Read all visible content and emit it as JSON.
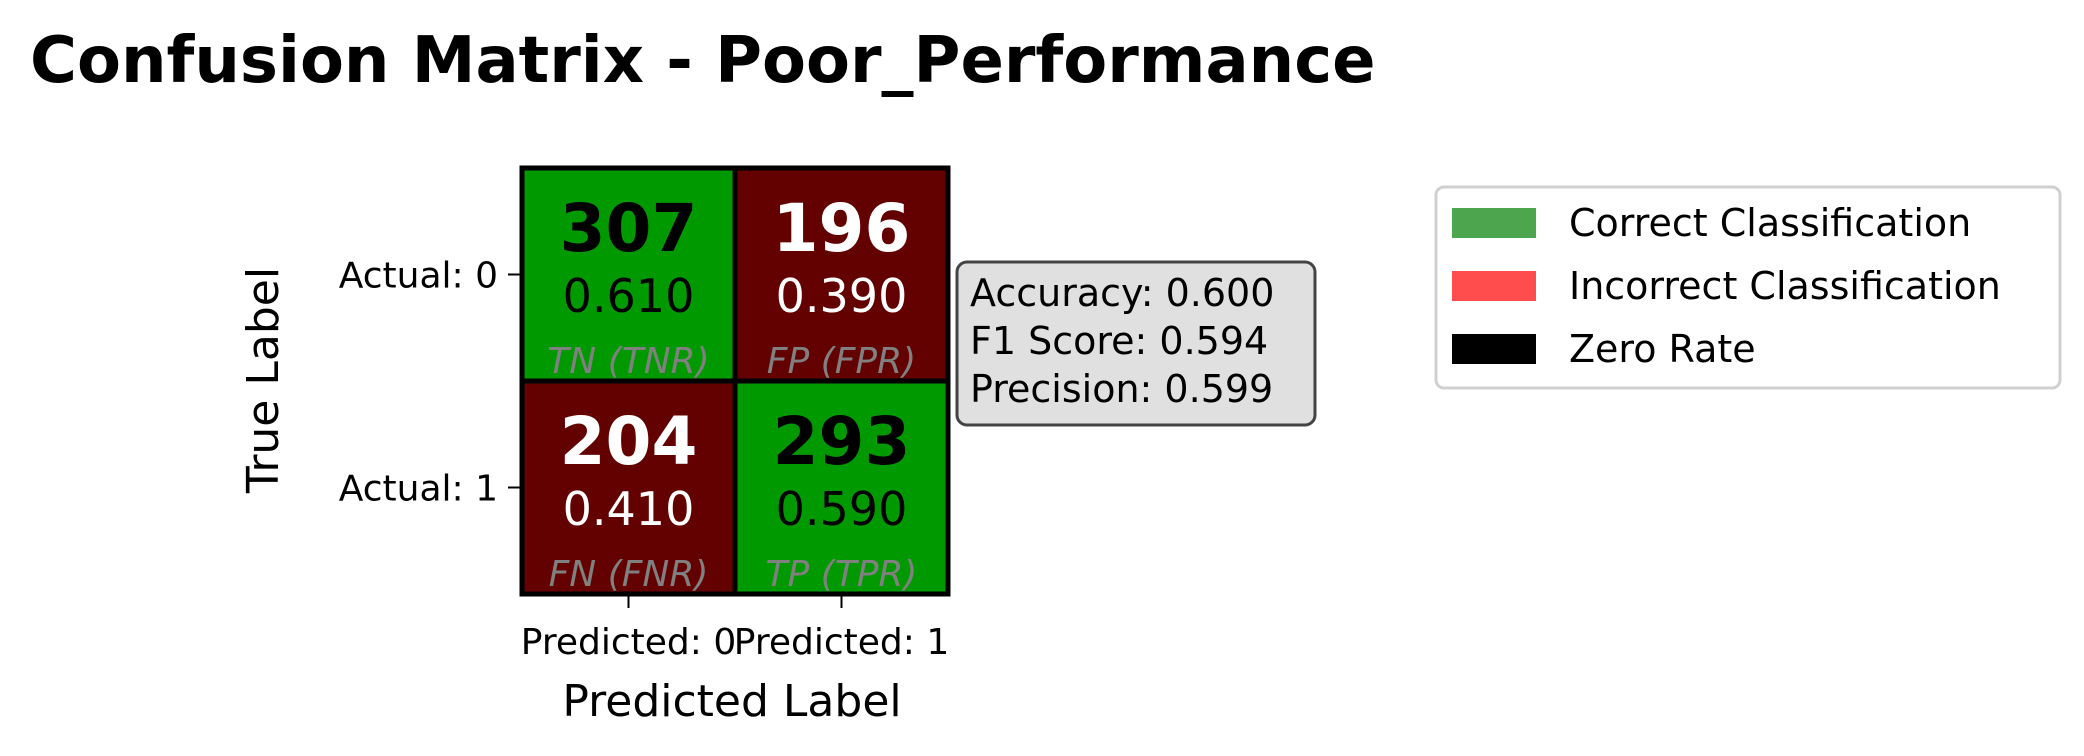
{
  "chart_data": {
    "type": "heatmap",
    "title": "Confusion Matrix - Poor_Performance",
    "xlabel": "Predicted Label",
    "ylabel": "True Label",
    "x_tick_labels": [
      "Predicted: 0",
      "Predicted: 1"
    ],
    "y_tick_labels": [
      "Actual: 0",
      "Actual: 1"
    ],
    "cells": [
      [
        {
          "count": "307",
          "rate": "0.610",
          "label": "TN (TNR)",
          "correct": true
        },
        {
          "count": "196",
          "rate": "0.390",
          "label": "FP (FPR)",
          "correct": false
        }
      ],
      [
        {
          "count": "204",
          "rate": "0.410",
          "label": "FN (FNR)",
          "correct": false
        },
        {
          "count": "293",
          "rate": "0.590",
          "label": "TP (TPR)",
          "correct": true
        }
      ]
    ],
    "metrics": [
      "Accuracy: 0.600",
      "F1 Score: 0.594",
      "Precision: 0.599"
    ],
    "legend": {
      "placement": "right",
      "entries": [
        {
          "label": "Correct Classification",
          "color": "#4da64d"
        },
        {
          "label": "Incorrect Classification",
          "color": "#ff4d4d"
        },
        {
          "label": "Zero Rate",
          "color": "#000000"
        }
      ]
    },
    "colors": {
      "correct_cell": "#009900",
      "incorrect_cell": "#630000",
      "text_on_correct": "#000000",
      "text_on_incorrect": "#ffffff",
      "metrics_box_fill": "#e0e0e0"
    }
  }
}
